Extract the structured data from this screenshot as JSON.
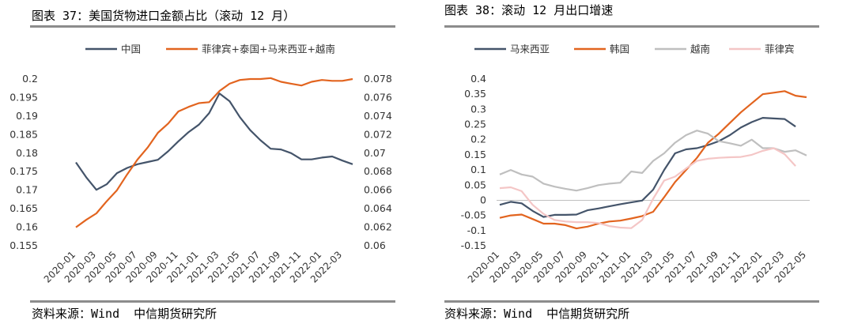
{
  "chart_data": [
    {
      "type": "line",
      "title": "图表 37：美国货物进口金额占比（滚动 12 月）",
      "source": "资料来源：Wind  中信期货研究所",
      "categories": [
        "2020-01",
        "2020-02",
        "2020-03",
        "2020-04",
        "2020-05",
        "2020-06",
        "2020-07",
        "2020-08",
        "2020-09",
        "2020-10",
        "2020-11",
        "2020-12",
        "2021-01",
        "2021-02",
        "2021-03",
        "2021-04",
        "2021-05",
        "2021-06",
        "2021-07",
        "2021-08",
        "2021-09",
        "2021-10",
        "2021-11",
        "2021-12",
        "2022-01",
        "2022-02",
        "2022-03",
        "2022-04"
      ],
      "x_tick_labels": [
        "2020-01",
        "2020-03",
        "2020-05",
        "2020-07",
        "2020-09",
        "2020-11",
        "2021-01",
        "2021-03",
        "2021-05",
        "2021-07",
        "2021-09",
        "2021-11",
        "2022-01",
        "2022-03"
      ],
      "y_left": {
        "min": 0.155,
        "max": 0.2,
        "step": 0.005,
        "tick_labels": [
          "0.155",
          "0.16",
          "0.165",
          "0.17",
          "0.175",
          "0.18",
          "0.185",
          "0.19",
          "0.195",
          "0.2"
        ]
      },
      "y_right": {
        "min": 0.06,
        "max": 0.078,
        "step": 0.002,
        "tick_labels": [
          "0.06",
          "0.062",
          "0.064",
          "0.066",
          "0.068",
          "0.07",
          "0.072",
          "0.074",
          "0.076",
          "0.078"
        ]
      },
      "legend_position": "top",
      "series": [
        {
          "name": "中国",
          "color": "#44546a",
          "axis": "left",
          "values": [
            0.1775,
            0.1735,
            0.1701,
            0.1716,
            0.1746,
            0.176,
            0.177,
            0.1776,
            0.1782,
            0.1805,
            0.1832,
            0.1857,
            0.1877,
            0.1908,
            0.1961,
            0.194,
            0.1897,
            0.1862,
            0.1835,
            0.1812,
            0.181,
            0.18,
            0.1783,
            0.1783,
            0.1788,
            0.1791,
            0.178,
            0.177
          ]
        },
        {
          "name": "菲律宾+泰国+马来西亚+越南",
          "color": "#e2641f",
          "axis": "right",
          "values": [
            0.062,
            0.0628,
            0.0635,
            0.0648,
            0.066,
            0.0677,
            0.0693,
            0.0706,
            0.0722,
            0.0732,
            0.0745,
            0.075,
            0.0754,
            0.0755,
            0.0767,
            0.0775,
            0.0779,
            0.078,
            0.078,
            0.0781,
            0.0777,
            0.0775,
            0.0773,
            0.0777,
            0.0779,
            0.0778,
            0.0778,
            0.078
          ]
        }
      ]
    },
    {
      "type": "line",
      "title": "图表 38：滚动 12 月出口增速",
      "source": "资料来源：Wind  中信期货研究所",
      "categories": [
        "2020-01",
        "2020-02",
        "2020-03",
        "2020-04",
        "2020-05",
        "2020-06",
        "2020-07",
        "2020-08",
        "2020-09",
        "2020-10",
        "2020-11",
        "2020-12",
        "2021-01",
        "2021-02",
        "2021-03",
        "2021-04",
        "2021-05",
        "2021-06",
        "2021-07",
        "2021-08",
        "2021-09",
        "2021-10",
        "2021-11",
        "2021-12",
        "2022-01",
        "2022-02",
        "2022-03",
        "2022-04",
        "2022-05"
      ],
      "x_tick_labels": [
        "2020-01",
        "2020-03",
        "2020-05",
        "2020-07",
        "2020-09",
        "2020-11",
        "2021-01",
        "2021-03",
        "2021-05",
        "2021-07",
        "2021-09",
        "2021-11",
        "2022-01",
        "2022-03",
        "2022-05"
      ],
      "y_axis": {
        "min": -0.15,
        "max": 0.4,
        "step": 0.05,
        "tick_labels": [
          "-0.15",
          "-0.1",
          "-0.05",
          "0",
          "0.05",
          "0.1",
          "0.15",
          "0.2",
          "0.25",
          "0.3",
          "0.35",
          "0.4"
        ]
      },
      "legend_position": "top",
      "series": [
        {
          "name": "马来西亚",
          "color": "#44546a",
          "values": [
            -0.015,
            -0.005,
            -0.01,
            -0.035,
            -0.055,
            -0.048,
            -0.048,
            -0.047,
            -0.033,
            -0.027,
            -0.02,
            -0.013,
            -0.007,
            -0.001,
            0.035,
            0.1,
            0.155,
            0.168,
            0.172,
            0.182,
            0.195,
            0.215,
            0.24,
            0.258,
            0.272,
            0.27,
            0.268,
            0.243,
            null
          ]
        },
        {
          "name": "韩国",
          "color": "#e2641f",
          "values": [
            -0.058,
            -0.05,
            -0.047,
            -0.062,
            -0.077,
            -0.077,
            -0.082,
            -0.093,
            -0.087,
            -0.077,
            -0.07,
            -0.067,
            -0.06,
            -0.052,
            -0.038,
            0.01,
            0.06,
            0.1,
            0.14,
            0.19,
            0.22,
            0.255,
            0.29,
            0.32,
            0.35,
            0.355,
            0.36,
            0.345,
            0.34
          ]
        },
        {
          "name": "越南",
          "color": "#bfbfbf",
          "values": [
            0.085,
            0.1,
            0.085,
            0.078,
            0.055,
            0.045,
            0.038,
            0.032,
            0.04,
            0.05,
            0.055,
            0.058,
            0.095,
            0.09,
            0.13,
            0.155,
            0.19,
            0.215,
            0.23,
            0.22,
            0.195,
            0.188,
            0.18,
            0.2,
            0.172,
            0.172,
            0.16,
            0.165,
            0.148
          ]
        },
        {
          "name": "菲律宾",
          "color": "#f4c6c6",
          "values": [
            0.04,
            0.043,
            0.03,
            -0.015,
            -0.045,
            -0.065,
            -0.07,
            -0.072,
            -0.072,
            -0.075,
            -0.085,
            -0.09,
            -0.092,
            -0.065,
            0.005,
            0.065,
            0.078,
            0.105,
            0.13,
            0.137,
            0.14,
            0.142,
            0.143,
            0.15,
            0.163,
            0.172,
            0.152,
            0.113,
            null
          ]
        }
      ]
    }
  ]
}
